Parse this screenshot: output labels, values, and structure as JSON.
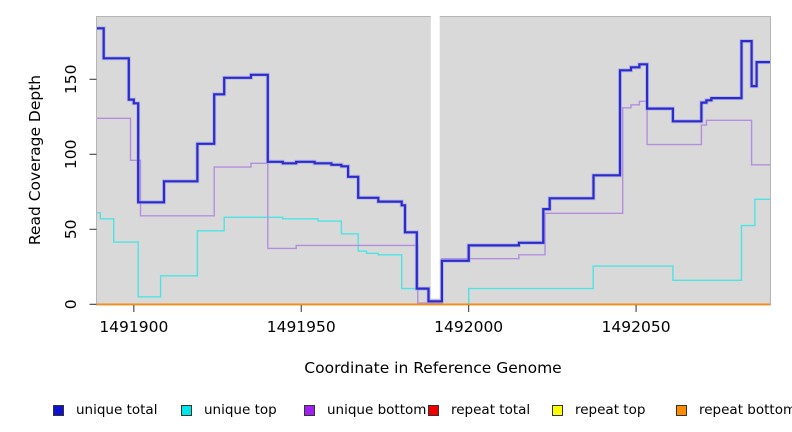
{
  "chart_data": {
    "type": "line",
    "subtype": "step-after-coverage-plot",
    "title": "",
    "xlabel": "Coordinate in Reference Genome",
    "ylabel": "Read Coverage Depth",
    "xlim": [
      1491889,
      1492090
    ],
    "ylim": [
      0,
      191
    ],
    "grid": false,
    "panel_bg": "#d9d9d9",
    "panel_border": "#b5b5b5",
    "tick_color": "#404040",
    "x_ticks": [
      1491900,
      1491950,
      1492000,
      1492050
    ],
    "x_tick_labels": [
      "1491900",
      "1491950",
      "1492000",
      "1492050"
    ],
    "y_ticks": [
      0,
      50,
      100,
      150
    ],
    "y_tick_labels": [
      "0",
      "50",
      "100",
      "150"
    ],
    "gap_band": {
      "x_start": 1491988.7,
      "x_end": 1491991.35,
      "color": "#ffffff",
      "note": "white vertical band interrupting all series except baseline"
    },
    "series": [
      {
        "name": "unique total",
        "color": "#2b2bcb",
        "halo_color": "#9a9aea",
        "width": 2.2,
        "points": [
          [
            1491889,
            184
          ],
          [
            1491891,
            164
          ],
          [
            1491898.5,
            136.5
          ],
          [
            1491900,
            134
          ],
          [
            1491901.3,
            68
          ],
          [
            1491909,
            82
          ],
          [
            1491919,
            107
          ],
          [
            1491924,
            140
          ],
          [
            1491927,
            151
          ],
          [
            1491935,
            153
          ],
          [
            1491940,
            95
          ],
          [
            1491944.5,
            94
          ],
          [
            1491948.5,
            95
          ],
          [
            1491954,
            94
          ],
          [
            1491959,
            93
          ],
          [
            1491962,
            92
          ],
          [
            1491964,
            85
          ],
          [
            1491967,
            71
          ],
          [
            1491973,
            68.5
          ],
          [
            1491980,
            66
          ],
          [
            1491981,
            48
          ],
          [
            1491984.5,
            10.5
          ],
          [
            1491988,
            2
          ],
          [
            1491992,
            29
          ],
          [
            1492000,
            39.3
          ],
          [
            1492015,
            41
          ],
          [
            1492022.3,
            63.5
          ],
          [
            1492024.2,
            70.7
          ],
          [
            1492037.3,
            86
          ],
          [
            1492045.2,
            156
          ],
          [
            1492048.5,
            158
          ],
          [
            1492051,
            160
          ],
          [
            1492053.3,
            130.5
          ],
          [
            1492061,
            122
          ],
          [
            1492069.5,
            134.5
          ],
          [
            1492071,
            136
          ],
          [
            1492072.5,
            137.5
          ],
          [
            1492081.5,
            175.5
          ],
          [
            1492084.5,
            145.5
          ],
          [
            1492086,
            161.5
          ]
        ]
      },
      {
        "name": "unique top",
        "color": "#4de3e3",
        "width": 1.4,
        "points": [
          [
            1491889,
            61
          ],
          [
            1491890,
            57
          ],
          [
            1491894,
            41.5
          ],
          [
            1491901.3,
            5
          ],
          [
            1491908,
            19
          ],
          [
            1491919,
            49
          ],
          [
            1491927,
            58
          ],
          [
            1491944.5,
            57
          ],
          [
            1491955,
            55.5
          ],
          [
            1491962,
            47
          ],
          [
            1491967,
            35.5
          ],
          [
            1491969.5,
            34
          ],
          [
            1491973,
            33
          ],
          [
            1491980,
            10.5
          ],
          [
            1491984.8,
            0
          ],
          [
            1492000,
            10.5
          ],
          [
            1492037.2,
            25.5
          ],
          [
            1492061,
            16
          ],
          [
            1492081.5,
            52.5
          ],
          [
            1492085.5,
            70
          ]
        ]
      },
      {
        "name": "unique bottom",
        "color": "#b48ede",
        "width": 1.4,
        "points": [
          [
            1491889,
            124
          ],
          [
            1491899,
            96
          ],
          [
            1491902,
            59
          ],
          [
            1491924,
            91.5
          ],
          [
            1491935,
            94
          ],
          [
            1491940,
            37.3
          ],
          [
            1491948.5,
            39.3
          ],
          [
            1491984.8,
            0.8
          ],
          [
            1491992,
            30.4
          ],
          [
            1492015,
            33
          ],
          [
            1492022.8,
            60.7
          ],
          [
            1492046,
            131
          ],
          [
            1492048.5,
            133
          ],
          [
            1492051,
            135.3
          ],
          [
            1492053.3,
            106.5
          ],
          [
            1492069.5,
            119.5
          ],
          [
            1492071,
            122.7
          ],
          [
            1492084.5,
            93
          ]
        ]
      },
      {
        "name": "repeat total",
        "color": "#ee1111",
        "width": 1.2,
        "points": [
          [
            1491889,
            0
          ]
        ]
      },
      {
        "name": "repeat top",
        "color": "#ffff00",
        "width": 1.2,
        "points": [
          [
            1491889,
            0
          ]
        ]
      },
      {
        "name": "repeat bottom",
        "color": "#ff8c00",
        "width": 1.6,
        "points": [
          [
            1491889,
            0
          ]
        ]
      }
    ],
    "legend": [
      {
        "label": "unique total",
        "color": "#1111cc"
      },
      {
        "label": "unique top",
        "color": "#00e5e5"
      },
      {
        "label": "unique bottom",
        "color": "#a020f0"
      },
      {
        "label": "repeat total",
        "color": "#ee0000"
      },
      {
        "label": "repeat top",
        "color": "#ffff00"
      },
      {
        "label": "repeat bottom",
        "color": "#ff8c00"
      }
    ],
    "legend_position": "bottom"
  }
}
